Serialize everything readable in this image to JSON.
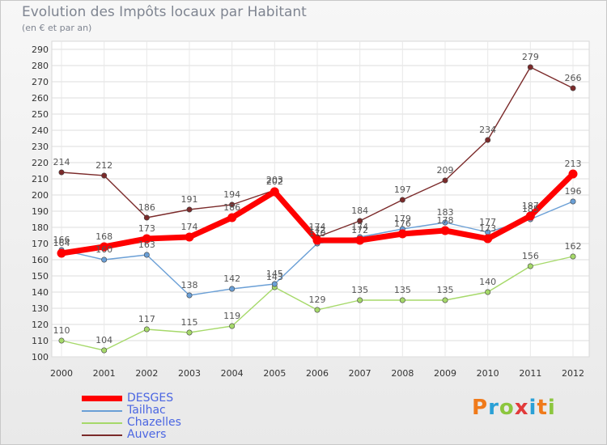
{
  "chart_data": {
    "type": "line",
    "title": "Evolution des Impôts locaux par Habitant",
    "subtitle": "(en € et par an)",
    "x": [
      "2000",
      "2001",
      "2002",
      "2003",
      "2004",
      "2005",
      "2006",
      "2007",
      "2008",
      "2009",
      "2010",
      "2011",
      "2012"
    ],
    "ylim": [
      100,
      290
    ],
    "yticks": [
      100,
      110,
      120,
      130,
      140,
      150,
      160,
      170,
      180,
      190,
      200,
      210,
      220,
      230,
      240,
      250,
      260,
      270,
      280,
      290
    ],
    "grid": true,
    "legend_position": "bottom-left",
    "series": [
      {
        "name": "DESGES",
        "color": "#ff0000",
        "values": [
          164,
          168,
          173,
          174,
          186,
          202,
          172,
          172,
          176,
          178,
          173,
          187,
          213
        ]
      },
      {
        "name": "Tailhac",
        "color": "#6a9fd6",
        "values": [
          166,
          160,
          163,
          138,
          142,
          145,
          170,
          174,
          179,
          183,
          177,
          185,
          196
        ]
      },
      {
        "name": "Chazelles",
        "color": "#a6d96a",
        "values": [
          110,
          104,
          117,
          115,
          119,
          143,
          129,
          135,
          135,
          135,
          140,
          156,
          162
        ]
      },
      {
        "name": "Auvers",
        "color": "#7b2a2a",
        "values": [
          214,
          212,
          186,
          191,
          194,
          203,
          174,
          184,
          197,
          209,
          234,
          279,
          266
        ]
      }
    ]
  },
  "legend": [
    "DESGES",
    "Tailhac",
    "Chazelles",
    "Auvers"
  ],
  "logo": {
    "text": "Proxiti",
    "colors": [
      "#f07a1a",
      "#2aa0d6",
      "#8cc63e",
      "#e23a3a",
      "#2aa0d6",
      "#f07a1a",
      "#8cc63e"
    ]
  }
}
